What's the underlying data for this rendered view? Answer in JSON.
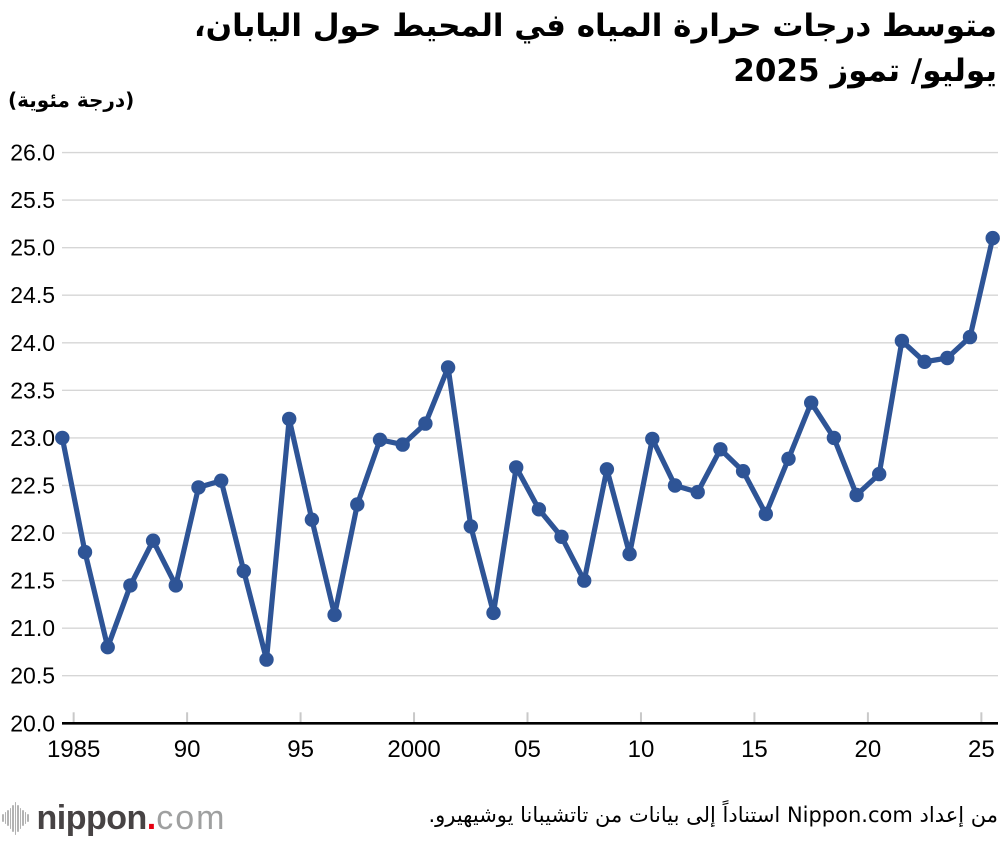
{
  "title": {
    "line1": "متوسط درجات حرارة المياه في المحيط حول اليابان،",
    "line2": "يوليو/ تموز 2025"
  },
  "y_axis_unit": "(درجة مئوية)",
  "footer": {
    "source": "من إعداد Nippon.com استناداً إلى بيانات من تاتشيبانا يوشيهيرو.",
    "logo_word": "nippon",
    "logo_dot": ".",
    "logo_tld": "com"
  },
  "chart_data": {
    "type": "line",
    "title": "متوسط درجات حرارة المياه في المحيط حول اليابان، يوليو/ تموز 2025",
    "ylabel": "(درجة مئوية)",
    "x": [
      1984,
      1985,
      1986,
      1987,
      1988,
      1989,
      1990,
      1991,
      1992,
      1993,
      1994,
      1995,
      1996,
      1997,
      1998,
      1999,
      2000,
      2001,
      2002,
      2003,
      2004,
      2005,
      2006,
      2007,
      2008,
      2009,
      2010,
      2011,
      2012,
      2013,
      2014,
      2015,
      2016,
      2017,
      2018,
      2019,
      2020,
      2021,
      2022,
      2023,
      2024,
      2025
    ],
    "values": [
      23.0,
      21.8,
      20.8,
      21.45,
      21.92,
      21.45,
      22.48,
      22.55,
      21.6,
      20.67,
      23.2,
      22.14,
      21.14,
      22.3,
      22.98,
      22.93,
      23.15,
      23.74,
      22.07,
      21.16,
      22.69,
      22.25,
      21.96,
      21.5,
      22.67,
      21.78,
      22.99,
      22.5,
      22.43,
      22.88,
      22.65,
      22.2,
      22.78,
      23.37,
      23.0,
      22.4,
      22.62,
      24.02,
      23.8,
      23.84,
      24.06,
      25.1
    ],
    "ylim": [
      20.0,
      26.0
    ],
    "ytick_step": 0.5,
    "ytick_labels": [
      "26.0",
      "25.5",
      "25.0",
      "24.5",
      "24.0",
      "23.5",
      "23.0",
      "22.5",
      "22.0",
      "21.5",
      "21.0",
      "20.5",
      "20.0"
    ],
    "xtick_years": [
      1985,
      1990,
      1995,
      2000,
      2005,
      2010,
      2015,
      2020,
      2025
    ],
    "xtick_labels": [
      "1985",
      "90",
      "95",
      "2000",
      "05",
      "10",
      "15",
      "20",
      "25"
    ],
    "grid_on": true,
    "line_color": "#2e5496",
    "grid_color": "#d6d6d6",
    "axis_color": "#000000",
    "tick_color": "#c9c9c9"
  }
}
